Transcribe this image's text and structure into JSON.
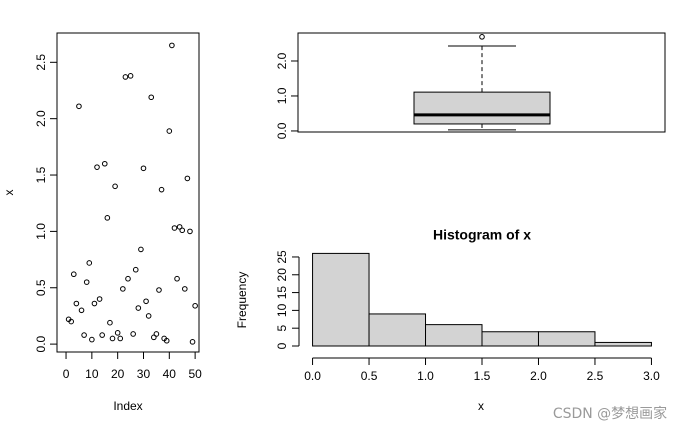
{
  "chart_data": [
    {
      "type": "scatter",
      "xlabel": "Index",
      "ylabel": "x",
      "x": [
        1,
        2,
        3,
        4,
        5,
        6,
        7,
        8,
        9,
        10,
        11,
        12,
        13,
        14,
        15,
        16,
        17,
        18,
        19,
        20,
        21,
        22,
        23,
        24,
        25,
        26,
        27,
        28,
        29,
        30,
        31,
        32,
        33,
        34,
        35,
        36,
        37,
        38,
        39,
        40,
        41,
        42,
        43,
        44,
        45,
        46,
        47,
        48,
        49,
        50
      ],
      "values": [
        0.22,
        0.2,
        0.62,
        0.36,
        2.11,
        0.3,
        0.08,
        0.55,
        0.72,
        0.04,
        0.36,
        1.57,
        0.4,
        0.08,
        1.6,
        1.12,
        0.19,
        0.05,
        1.4,
        0.1,
        0.05,
        0.49,
        2.37,
        0.58,
        2.38,
        0.09,
        0.66,
        0.32,
        0.84,
        1.56,
        0.38,
        0.25,
        2.19,
        0.06,
        0.09,
        0.48,
        1.37,
        0.05,
        0.03,
        1.89,
        2.65,
        1.03,
        0.58,
        1.04,
        1.01,
        0.49,
        1.47,
        1.0,
        0.02,
        0.34
      ],
      "xlim": [
        -3.5,
        51.5
      ],
      "xticks": [
        0,
        10,
        20,
        30,
        40,
        50
      ],
      "ylim": [
        -0.07,
        2.76
      ],
      "yticks": [
        {
          "value": 0,
          "label": "0.0"
        },
        0.5,
        {
          "value": 1,
          "label": "1.0"
        },
        1.5,
        {
          "value": 2,
          "label": "2.0"
        },
        2.5
      ]
    },
    {
      "type": "box",
      "min": 0.03,
      "q1": 0.2,
      "median": 0.46,
      "q3": 1.11,
      "max": 2.43,
      "outliers": [
        2.69
      ],
      "color": "#d3d3d3",
      "ylim": [
        -0.03,
        2.8
      ],
      "yticks": [
        {
          "value": 0,
          "label": "0.0"
        },
        {
          "value": 1,
          "label": "1.0"
        },
        {
          "value": 2,
          "label": "2.0"
        }
      ]
    },
    {
      "type": "histogram",
      "title": "Histogram of x",
      "xlabel": "x",
      "ylabel": "Frequency",
      "bins": [
        0,
        0.5,
        1,
        1.5,
        2,
        2.5,
        3
      ],
      "counts": [
        26,
        9,
        6,
        4,
        4,
        1
      ],
      "color": "#d3d3d3",
      "xlim": [
        -0.12,
        3.12
      ],
      "xticks": [
        {
          "value": 0,
          "label": "0.0"
        },
        0.5,
        {
          "value": 1,
          "label": "1.0"
        },
        1.5,
        {
          "value": 2,
          "label": "2.0"
        },
        2.5,
        {
          "value": 3,
          "label": "3.0"
        }
      ],
      "ylim": [
        -1.04,
        27.04
      ],
      "yticks": [
        0,
        5,
        10,
        15,
        20,
        25
      ]
    }
  ],
  "watermark": "CSDN @梦想画家"
}
